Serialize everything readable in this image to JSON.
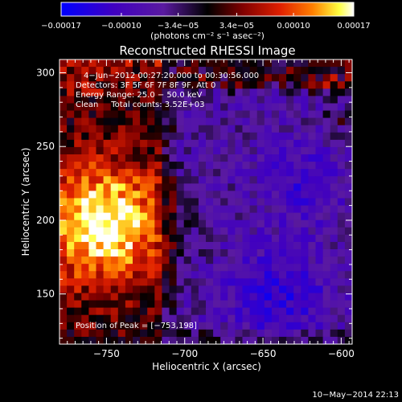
{
  "chart_data": {
    "type": "heatmap",
    "title": "Reconstructed RHESSI Image",
    "xlabel": "Heliocentric X (arcsec)",
    "ylabel": "Heliocentric Y (arcsec)",
    "xlim": [
      -780,
      -593
    ],
    "ylim": [
      116,
      309
    ],
    "x_ticks": [
      -750,
      -700,
      -650,
      -600
    ],
    "x_tick_labels": [
      "−750",
      "−700",
      "−650",
      "−600"
    ],
    "y_ticks": [
      150,
      200,
      250,
      300
    ],
    "y_tick_labels": [
      "150",
      "200",
      "250",
      "300"
    ],
    "colorbar": {
      "range": [
        -0.00017,
        0.00017
      ],
      "ticks": [
        -0.00017,
        -0.0001,
        -3.4e-05,
        3.4e-05,
        0.0001,
        0.00017
      ],
      "tick_labels": [
        "−0.00017",
        "−0.00010",
        "−3.4e−05",
        "3.4e−05",
        "0.00010",
        "0.00017"
      ],
      "unit_label": "(photons cm⁻² s⁻¹ asec⁻²)",
      "colormap": [
        "#0000ff",
        "#4000c0",
        "#5a1aa0",
        "#000000",
        "#800000",
        "#e02000",
        "#ff8000",
        "#ffff40",
        "#ffffff"
      ]
    },
    "annotations": [
      "4−Jun−2012 00:27:20.000 to 00:30:56.000",
      "Detectors: 3F 5F 6F 7F 8F 9F, Att 0",
      "Energy Range: 25.0 − 50.0 keV",
      "Clean     Total counts: 3.52E+03"
    ],
    "peak_label": "Position of Peak = [−753,198]",
    "peak": [
      -753,
      198
    ],
    "grid": false
  },
  "footer_timestamp": "10−May−2014 22:13"
}
